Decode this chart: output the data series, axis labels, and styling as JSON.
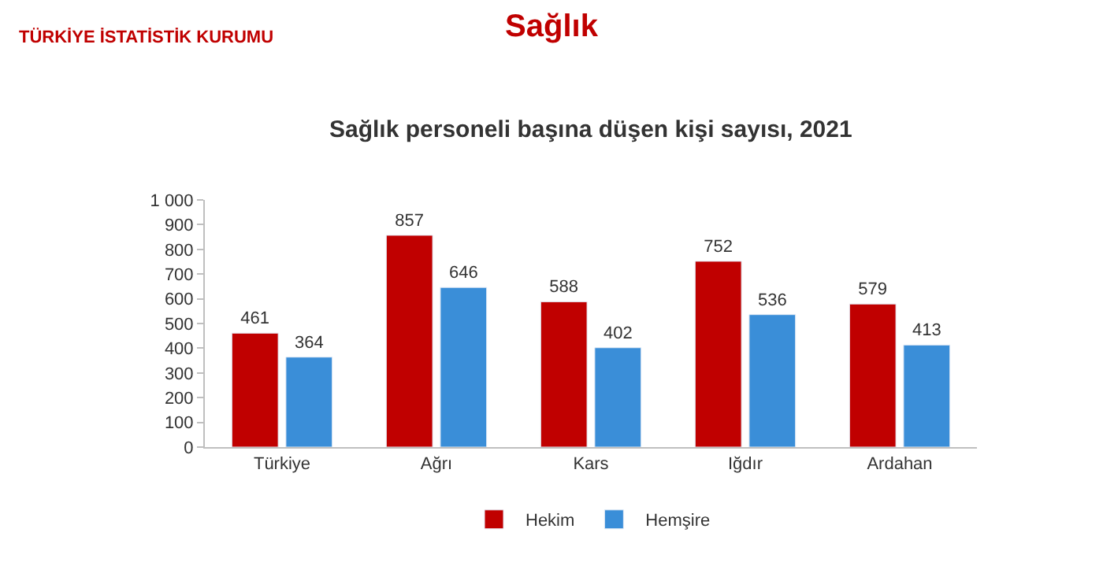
{
  "chart_data": {
    "type": "bar",
    "title": "Sağlık",
    "subtitle": "Sağlık personeli başına düşen kişi sayısı, 2021",
    "annotations": [
      "TÜRKİYE İSTATİSTİK KURUMU"
    ],
    "categories": [
      "Türkiye",
      "Ağrı",
      "Kars",
      "Iğdır",
      "Ardahan"
    ],
    "series": [
      {
        "name": "Hekim",
        "color": "#c00000",
        "values": [
          461,
          857,
          588,
          752,
          579
        ]
      },
      {
        "name": "Hemşire",
        "color": "#3a8ed8",
        "values": [
          364,
          646,
          402,
          536,
          413
        ]
      }
    ],
    "ylim": [
      0,
      1000
    ],
    "yticks": [
      0,
      100,
      200,
      300,
      400,
      500,
      600,
      700,
      800,
      900,
      {
        "value": 1000,
        "label": "1 000"
      }
    ],
    "data_labels": true,
    "grid": false,
    "legend": "bottom"
  }
}
